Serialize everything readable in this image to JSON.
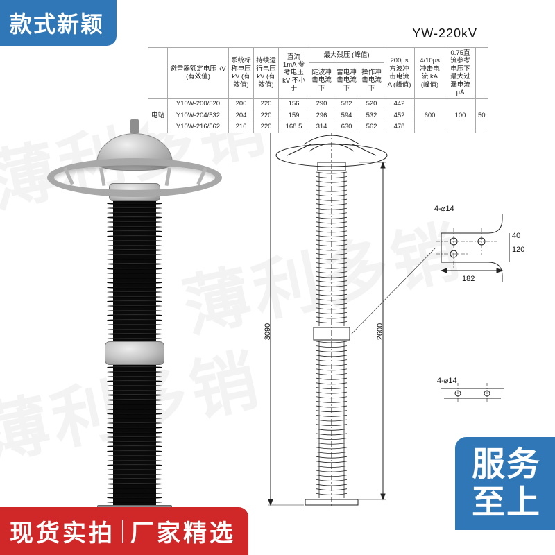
{
  "badges": {
    "top_left": "款式新颖",
    "bottom_right_line1": "服务",
    "bottom_right_line2": "至上",
    "bottom_left_line1": "现货实拍",
    "bottom_left_line2": "厂家精选"
  },
  "product": {
    "title": "YW-220kV"
  },
  "table": {
    "header_row1": [
      "",
      "避雷器额定电压 kV (有效值)",
      "系统标称电压 kV (有效值)",
      "持续运行电压 kV (有效值)",
      "直流 1mA 参考电压 kV 不小于",
      "最大残压 (峰值)",
      "200μs 方波冲击电流 A (峰值)",
      "4/10μs 冲击电流 kA (峰值)",
      "0.75直流参考电压下最大过漏电流 μA"
    ],
    "header_row2_span": "最大残压 (峰值)",
    "header_row2_sub": [
      "陡波冲击电流下",
      "雷电冲击电流下",
      "操作冲击电流下"
    ],
    "group_label": "电站",
    "rows": [
      [
        "Y10W-200/520",
        "200",
        "220",
        "156",
        "290",
        "582",
        "520",
        "442",
        "600",
        "100",
        "50"
      ],
      [
        "Y10W-204/532",
        "204",
        "220",
        "159",
        "296",
        "594",
        "532",
        "452",
        "",
        "",
        ""
      ],
      [
        "Y10W-216/562",
        "216",
        "220",
        "168.5",
        "314",
        "630",
        "562",
        "478",
        "",
        "",
        ""
      ]
    ],
    "border_color": "#aaaaaa",
    "font_size_pt": 7,
    "text_color": "#222222"
  },
  "photo": {
    "sheds_per_segment": 30,
    "body_color": "#0a0a0a",
    "shed_highlight": "#3b3b3b",
    "flange_color": "#bcbcbc",
    "ring_color": "#a8a8a8",
    "cap_color_light": "#f0f0f0",
    "cap_color_dark": "#8b8b8b"
  },
  "diagram": {
    "total_height": "3090",
    "body_height": "2600",
    "flange_hole_note": "4-⌀14",
    "flange_detail": {
      "w": "182",
      "h": "120",
      "pitch_x": "182",
      "pitch_y": "40"
    },
    "second_hole_note": "4-⌀14",
    "stroke_color": "#222222",
    "stroke_width": 1
  },
  "colors": {
    "blue_badge": "#2f77b7",
    "red_badge": "#d02828",
    "white": "#ffffff"
  },
  "watermark": {
    "text": "薄利多销",
    "text_repeat": 3
  }
}
